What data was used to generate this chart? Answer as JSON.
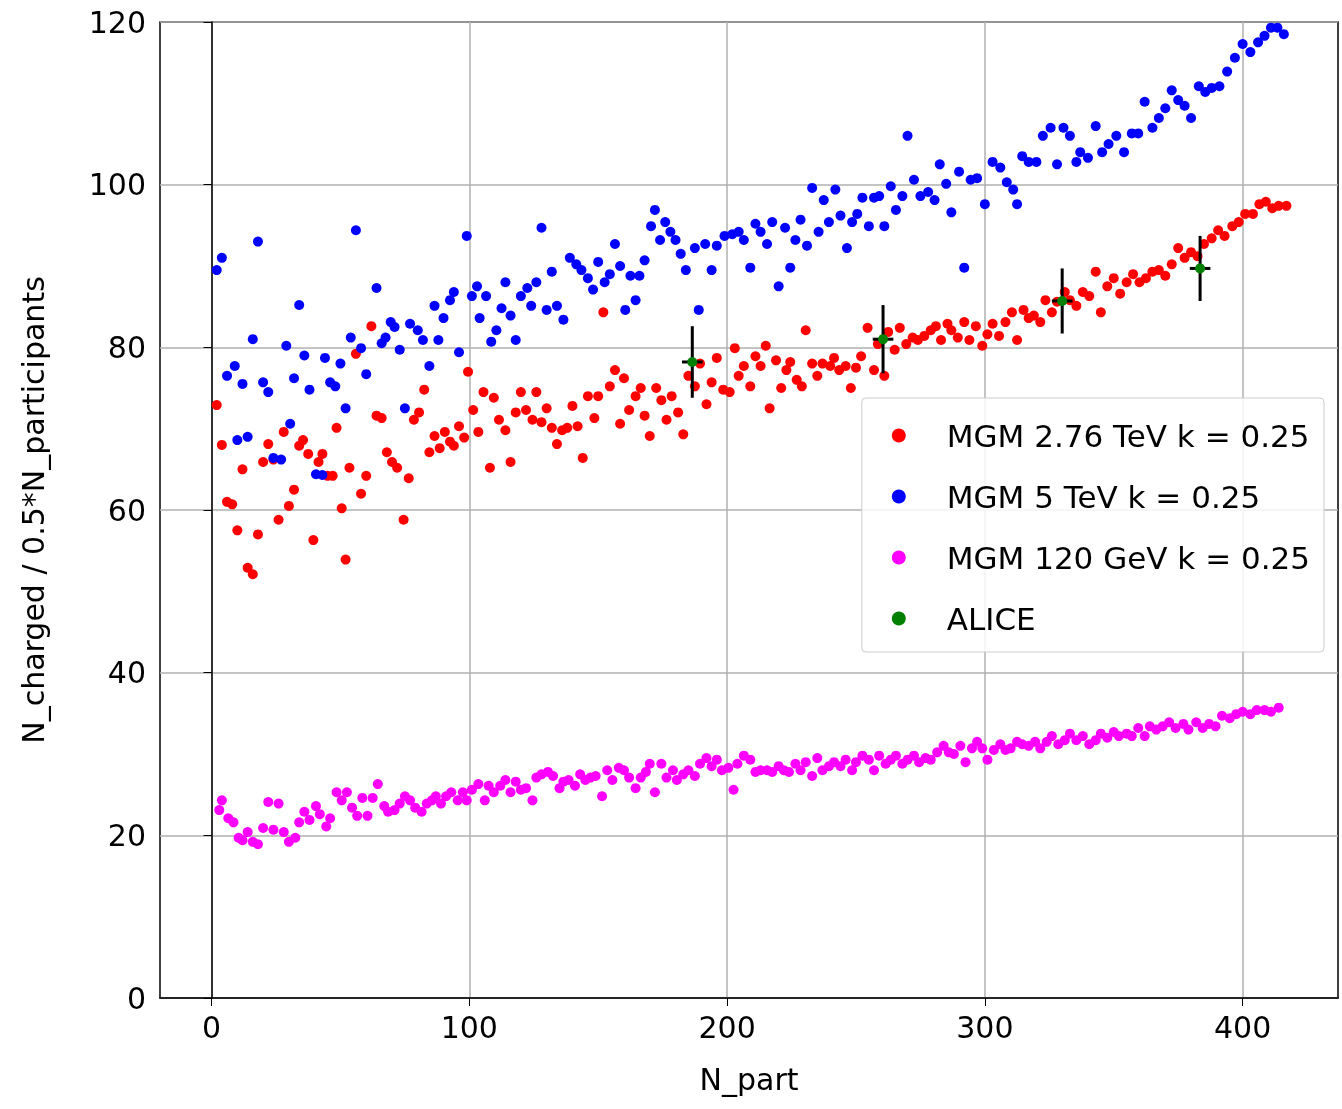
{
  "chart_data": {
    "type": "scatter",
    "xlabel": "N_part",
    "ylabel": "N_charged / 0.5*N_participants",
    "xlim": [
      -20,
      437
    ],
    "ylim": [
      0,
      120
    ],
    "xticks": [
      0,
      100,
      200,
      300,
      400
    ],
    "yticks": [
      0,
      20,
      40,
      60,
      80,
      100,
      120
    ],
    "grid": true,
    "legend": "right",
    "marker": "circle",
    "series": [
      {
        "name": "MGM 2.76 TeV k = 0.25",
        "color": "#ff0000",
        "x": [
          2,
          4,
          6,
          8,
          10,
          12,
          14,
          16,
          18,
          20,
          22,
          24,
          26,
          28,
          30,
          32,
          34,
          35.5,
          37.5,
          39.5,
          41.5,
          43,
          45,
          47,
          48.5,
          50.5,
          52,
          53.5,
          56,
          58,
          60,
          62,
          64,
          66,
          68,
          70,
          72,
          74.5,
          76.5,
          78.5,
          80.5,
          82.5,
          84.5,
          86.5,
          88.5,
          90.5,
          92.5,
          94,
          96,
          98,
          99.5,
          101.5,
          103.5,
          105.5,
          108,
          109.5,
          111.5,
          114,
          116,
          118,
          120,
          122,
          124.5,
          126,
          128,
          130,
          132,
          134,
          136,
          138,
          140,
          142,
          144,
          146,
          148.5,
          150,
          152,
          154.5,
          156.5,
          158.5,
          160,
          162,
          164.5,
          166.5,
          168,
          170,
          172.5,
          174.5,
          176.5,
          178.5,
          181,
          183,
          185,
          187.5,
          189.5,
          192,
          194,
          196,
          198.5,
          201,
          203,
          204.5,
          206.5,
          209,
          211,
          213,
          215,
          216.5,
          219,
          221,
          223,
          224.5,
          227,
          229,
          230.5,
          233,
          235,
          237,
          240,
          241.5,
          243.5,
          246,
          248,
          250,
          252,
          254.5,
          257,
          258.5,
          261,
          262.5,
          265,
          267,
          269.5,
          272,
          274,
          276.5,
          279,
          281,
          283,
          285.5,
          287,
          289.5,
          292,
          294,
          296.5,
          299,
          301,
          303,
          305.5,
          308,
          310.5,
          312.5,
          315,
          317,
          319,
          321.5,
          323.5,
          326,
          328,
          331,
          333,
          335.5,
          338,
          340.5,
          343,
          345,
          347.5,
          350,
          352.5,
          355,
          357.5,
          360,
          362.5,
          365,
          367.5,
          370,
          372.5,
          375,
          377.5,
          380,
          382.5,
          385,
          388,
          390.5,
          393,
          396,
          398.5,
          401,
          404,
          406.5,
          409,
          411.5,
          414,
          417
        ],
        "values": [
          72.9,
          68,
          61,
          60.7,
          57.5,
          65,
          52.9,
          52.1,
          57,
          65.9,
          68.1,
          66.2,
          58.8,
          69.6,
          60.5,
          62.5,
          67.9,
          68.6,
          66.9,
          56.3,
          65.9,
          66.9,
          64.2,
          64.2,
          70.1,
          60.2,
          53.9,
          65.2,
          79.2,
          62,
          64.2,
          82.6,
          71.6,
          71.3,
          67.1,
          65.9,
          65.2,
          58.8,
          63.9,
          71.1,
          72,
          74.8,
          67.1,
          69.1,
          67.6,
          69.6,
          68.4,
          67.9,
          70.3,
          68.9,
          77,
          72.3,
          69.6,
          74.5,
          65.2,
          73.8,
          71.1,
          69.8,
          65.9,
          72,
          74.5,
          72.3,
          71.1,
          74.5,
          70.8,
          72.5,
          70.1,
          68.1,
          69.8,
          70.1,
          72.8,
          70.3,
          66.4,
          74,
          71.3,
          74,
          84.3,
          75.2,
          77.2,
          70.6,
          76.2,
          72.3,
          74,
          75,
          71.6,
          69.1,
          75,
          73.5,
          71.1,
          74,
          72,
          69.3,
          76.5,
          75.2,
          78,
          73,
          75.7,
          78.7,
          74.8,
          74.5,
          79.9,
          76.5,
          77.7,
          75.2,
          78.9,
          77.7,
          80.2,
          72.5,
          78.4,
          75,
          77.2,
          78.2,
          76,
          75.2,
          82.1,
          78,
          76.5,
          78,
          77.7,
          78.7,
          77.2,
          77.7,
          75,
          77.5,
          78.9,
          82.4,
          77.2,
          80.4,
          76.5,
          81.9,
          79.7,
          82.4,
          80.4,
          81.2,
          80.9,
          81.4,
          82.1,
          82.6,
          80.9,
          82.9,
          82.1,
          81.2,
          83.1,
          80.9,
          82.6,
          80.2,
          81.6,
          82.9,
          81.4,
          83.1,
          84.3,
          80.9,
          84.6,
          83.6,
          83.9,
          83.1,
          85.8,
          84.3,
          85.6,
          86.8,
          85.8,
          85.1,
          86.8,
          86.3,
          89.3,
          84.3,
          87.5,
          88.5,
          86.6,
          88,
          89,
          88,
          88.5,
          89.3,
          89.5,
          88.8,
          90.2,
          92.2,
          91,
          91.7,
          91.2,
          92.7,
          93.4,
          94.4,
          93.7,
          94.9,
          95.4,
          96.4,
          96.4,
          97.6,
          97.9,
          97.1,
          97.4,
          97.4
        ]
      },
      {
        "name": "MGM 5 TeV k = 0.25",
        "color": "#0000ff",
        "x": [
          2,
          4,
          6,
          9,
          10,
          12,
          14,
          16,
          18,
          20,
          22,
          24,
          27,
          29,
          30.5,
          32,
          34,
          36,
          38,
          40.5,
          43,
          44,
          46,
          48,
          50,
          52,
          54,
          56,
          58,
          60,
          64,
          66,
          67.5,
          69.5,
          71,
          73,
          75,
          77,
          80,
          82,
          84.5,
          86.5,
          88,
          90,
          92.5,
          94,
          96,
          99,
          101,
          103,
          104,
          106.5,
          108.5,
          110.5,
          112.5,
          114,
          116,
          118,
          120,
          122.5,
          124,
          126,
          128,
          130,
          132,
          134,
          136.5,
          139,
          141.5,
          143.5,
          146,
          148,
          150,
          152.5,
          154.5,
          156.5,
          158.5,
          160.5,
          162.5,
          164.5,
          166,
          168,
          170.5,
          172,
          174,
          176,
          178,
          180,
          182,
          184,
          187.5,
          189,
          191.5,
          194,
          196,
          199,
          202,
          204.5,
          206.5,
          209,
          211,
          213,
          215.5,
          217.5,
          220,
          222.5,
          224.5,
          226.5,
          228.5,
          231,
          233,
          235.5,
          237.5,
          239.5,
          242,
          244,
          246.5,
          248.5,
          250.5,
          252.5,
          255,
          257,
          259,
          261,
          263.5,
          265.5,
          268,
          270,
          272.5,
          275,
          278,
          280.5,
          282.5,
          285,
          287,
          290,
          292,
          294.5,
          297,
          300,
          303,
          306,
          308.5,
          311,
          312.5,
          314.5,
          317,
          320,
          322.5,
          325.5,
          328,
          330.5,
          333,
          335.5,
          337,
          340,
          343,
          345.5,
          348,
          351,
          354,
          357,
          359.5,
          362,
          365,
          367.5,
          370,
          372.5,
          375,
          377.5,
          380,
          383,
          385.5,
          388,
          391,
          394,
          397,
          400,
          403,
          406,
          408.5,
          411,
          413.5,
          416
        ],
        "values": [
          89.5,
          91,
          76.5,
          77.7,
          68.6,
          75.5,
          69,
          81,
          93,
          75.7,
          74.5,
          66.4,
          66.2,
          80.2,
          70.6,
          76.2,
          85.2,
          79,
          74.8,
          64.4,
          64.3,
          78.7,
          75.7,
          75.2,
          78,
          72.5,
          81.2,
          94.4,
          79.9,
          76.7,
          87.3,
          80.5,
          81.2,
          83.1,
          82.5,
          79.7,
          72.5,
          82.9,
          82.1,
          80.9,
          77.7,
          85.1,
          80.9,
          83.6,
          85.8,
          86.8,
          79.4,
          93.7,
          86.3,
          87.5,
          83.6,
          86.3,
          80.7,
          82.1,
          84.8,
          88,
          83.9,
          80.9,
          86.3,
          87.3,
          85.1,
          88,
          94.7,
          84.6,
          89.3,
          85.1,
          83.4,
          91,
          90.2,
          89.5,
          88.5,
          87.1,
          90.5,
          88,
          89,
          92.7,
          90,
          84.6,
          88.8,
          85.8,
          88.8,
          90.7,
          94.9,
          96.9,
          93.2,
          95.4,
          94.2,
          93.2,
          91.5,
          89.5,
          92.2,
          84.6,
          92.7,
          89.5,
          92.5,
          93.7,
          93.9,
          94.2,
          93.2,
          89.8,
          95.2,
          94.2,
          92.7,
          95.4,
          87.5,
          94.7,
          89.8,
          93.2,
          95.7,
          92.5,
          99.6,
          94.2,
          98.1,
          95.4,
          99.4,
          96.2,
          92.2,
          95.4,
          96.4,
          98.4,
          94.9,
          98.4,
          98.6,
          94.9,
          99.8,
          96.9,
          98.6,
          106,
          100.6,
          98.6,
          99.1,
          98.1,
          102.5,
          100.1,
          96.6,
          101.6,
          89.8,
          100.6,
          100.8,
          97.6,
          102.8,
          102.1,
          100.3,
          99.4,
          97.6,
          103.5,
          102.8,
          102.8,
          106,
          107,
          102.5,
          107,
          106,
          102.8,
          104,
          103.3,
          107.2,
          104,
          105,
          106,
          104,
          106.3,
          106.3,
          110.2,
          107,
          108.2,
          109.4,
          111.6,
          110.4,
          109.7,
          108.2,
          112.1,
          111.4,
          111.9,
          112.1,
          113.9,
          115.6,
          117.3,
          116.3,
          117.5,
          118.3,
          119.3,
          119.3,
          118.5
        ]
      },
      {
        "name": "MGM 120 GeV k = 0.25",
        "color": "#ff00ff",
        "x": [
          3,
          4,
          6.5,
          8.5,
          10.5,
          12,
          14,
          16,
          18,
          20,
          22,
          24,
          26,
          28,
          30,
          32.5,
          34,
          36,
          38,
          40.5,
          42,
          44.5,
          46,
          48.5,
          50.5,
          52.5,
          54.5,
          56.5,
          58.5,
          60.5,
          62.5,
          64.5,
          67,
          68.5,
          71,
          73,
          75,
          77,
          79,
          81.5,
          83.5,
          85.5,
          87,
          89,
          91,
          93,
          95.5,
          97.5,
          99,
          101,
          103.5,
          106,
          107.5,
          109.5,
          112,
          114,
          116,
          118,
          120,
          122,
          124.5,
          126,
          128,
          130.5,
          132.5,
          135,
          136.5,
          138.5,
          141,
          143,
          145,
          147,
          149,
          151.5,
          153.5,
          155.5,
          158,
          160,
          162,
          164.5,
          166.5,
          168.5,
          170,
          172,
          174.5,
          176.5,
          179,
          180.5,
          183,
          185,
          187.5,
          189.5,
          192,
          194,
          196,
          198,
          200.5,
          202.5,
          204,
          206.5,
          209,
          211,
          213,
          215.5,
          217.5,
          220,
          222,
          224,
          226.5,
          228.5,
          230.5,
          233,
          235,
          237,
          239.5,
          241.5,
          244,
          246,
          248.5,
          250,
          252.5,
          255,
          257,
          259,
          261.5,
          263.5,
          265.5,
          268,
          270,
          272.5,
          274.5,
          277,
          279,
          281.5,
          284,
          286,
          288,
          290.5,
          292.5,
          295,
          297,
          299,
          301,
          303.5,
          306,
          308,
          310,
          312.5,
          314.5,
          317,
          319.5,
          321.5,
          324,
          326,
          328.5,
          331,
          333,
          335.5,
          338,
          340.5,
          343,
          345,
          347.5,
          350,
          352,
          355,
          357,
          359.5,
          362,
          364,
          366.5,
          369,
          371.5,
          374,
          377,
          379,
          382,
          384.5,
          387,
          389.5,
          392,
          395,
          397.5,
          400,
          403,
          405.5,
          408.5,
          411,
          414
        ],
        "values": [
          23.1,
          24.3,
          22.1,
          21.6,
          19.7,
          19.4,
          20.4,
          19.2,
          18.9,
          20.9,
          24.1,
          20.7,
          23.9,
          20.4,
          19.2,
          19.7,
          21.6,
          22.9,
          21.9,
          23.6,
          22.6,
          21.1,
          22.1,
          25.3,
          24.3,
          25.3,
          23.4,
          22.4,
          24.6,
          22.4,
          24.6,
          26.3,
          23.6,
          22.9,
          23.1,
          23.9,
          24.8,
          24.3,
          23.4,
          22.9,
          23.9,
          24.3,
          24.8,
          23.9,
          24.8,
          25.3,
          24.3,
          25.3,
          24.3,
          25.6,
          26.3,
          24.3,
          26.1,
          25.3,
          26.1,
          26.8,
          25.3,
          26.6,
          25.6,
          25.8,
          24.3,
          27.1,
          27.5,
          27.8,
          27.3,
          25.8,
          26.6,
          26.8,
          26.1,
          27.5,
          26.8,
          27.1,
          27.3,
          24.8,
          28,
          26.8,
          28.3,
          28,
          27.1,
          25.8,
          27.1,
          27.8,
          28.8,
          25.3,
          28.8,
          27.1,
          28,
          26.8,
          27.5,
          28,
          27.3,
          28.8,
          29.5,
          28.5,
          29.3,
          28,
          28.3,
          25.6,
          28.8,
          29.8,
          29.3,
          27.8,
          28,
          28,
          27.8,
          28.5,
          28,
          27.8,
          28.8,
          28,
          29,
          27.3,
          29.5,
          28,
          28.5,
          29,
          28.5,
          29.3,
          28,
          29,
          29.8,
          29.3,
          28,
          29.8,
          28.8,
          29.3,
          29.8,
          28.8,
          29.3,
          29.8,
          29,
          29.5,
          29.3,
          30.2,
          31,
          30.2,
          30,
          31,
          29,
          30.7,
          31.5,
          30.7,
          29.3,
          30.5,
          31.2,
          30.5,
          30.7,
          31.5,
          31.2,
          31,
          31.5,
          30.7,
          31.5,
          32.2,
          31.2,
          31.7,
          32.5,
          31.7,
          32.2,
          31.2,
          31.7,
          32.5,
          32,
          32.7,
          32.2,
          32.5,
          32.2,
          33.2,
          32.2,
          33.4,
          33,
          33.4,
          33.9,
          33.2,
          33.7,
          33,
          33.9,
          33.2,
          33.7,
          33.4,
          34.7,
          34.4,
          34.9,
          35.2,
          34.9,
          35.4,
          35.4,
          35.2,
          35.7
        ]
      },
      {
        "name": "ALICE",
        "color": "#008000",
        "x": [
          186.5,
          260.5,
          330,
          383.5
        ],
        "values": [
          78.2,
          81,
          85.7,
          89.7
        ],
        "errors": [
          4.4,
          4.2,
          4,
          4
        ],
        "xerrors": [
          4,
          4,
          4,
          4
        ]
      }
    ]
  }
}
